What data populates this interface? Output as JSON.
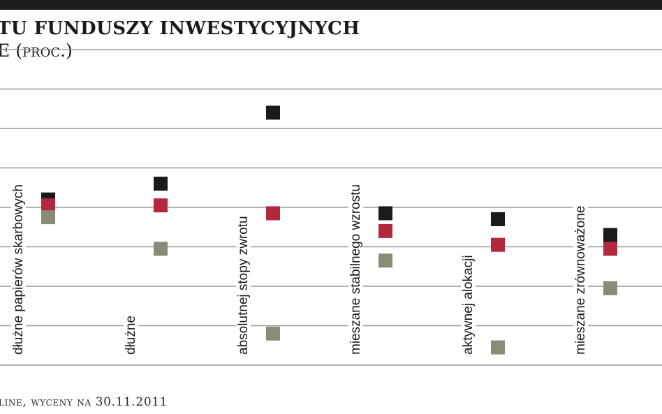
{
  "header": {
    "title": "TU FUNDUSZY INWESTYCYJNYCH",
    "subtitle": "E (proc.)"
  },
  "footer": {
    "source": "line, wyceny na 30.11.2011"
  },
  "colors": {
    "series_black": "#1a1a1a",
    "series_red": "#b3283f",
    "series_gray": "#8a8a76",
    "gridline": "#9a9a9a"
  },
  "chart_data": {
    "type": "scatter",
    "categories": [
      "dłużne papierów skarbowych",
      "dłużne",
      "absolutnej stopy zwrotu",
      "mieszane stabilnego wzrostu",
      "aktywnej alokacji",
      "mieszane zrównoważone"
    ],
    "series": [
      {
        "values": [
          8.4,
          9.2,
          12.8,
          7.7,
          7.4,
          6.6
        ]
      },
      {
        "values": [
          8.1,
          8.1,
          7.7,
          6.8,
          6.1,
          5.9
        ]
      },
      {
        "values": [
          7.5,
          5.9,
          1.6,
          5.3,
          0.9,
          3.9
        ]
      }
    ],
    "ylim": [
      0,
      16
    ],
    "grid": true,
    "legend": "none"
  }
}
